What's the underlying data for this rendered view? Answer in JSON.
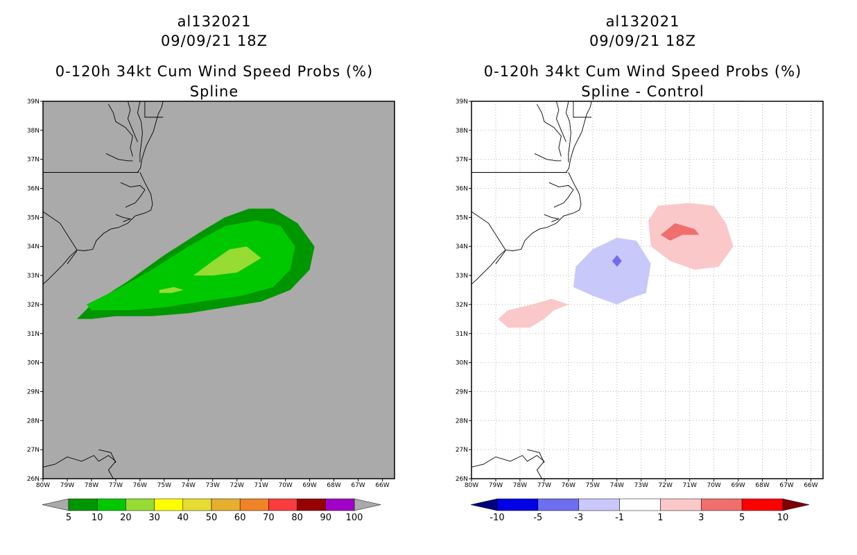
{
  "left": {
    "storm_id": "al132021",
    "datetime": "09/09/21 18Z",
    "title": "0-120h 34kt Cum Wind Speed Probs (%)",
    "subtitle": "Spline",
    "colorbar": {
      "labels": [
        "5",
        "10",
        "20",
        "30",
        "40",
        "50",
        "60",
        "70",
        "80",
        "90",
        "100"
      ],
      "colors": [
        "#009600",
        "#00c800",
        "#96dc32",
        "#ffff00",
        "#e6dc32",
        "#e6af2d",
        "#f08228",
        "#fa3c3c",
        "#960000",
        "#a000c8"
      ],
      "under_color": "#aaaaaa",
      "over_color": "#aaaaaa"
    },
    "background_color": "#aaaaaa"
  },
  "right": {
    "storm_id": "al132021",
    "datetime": "09/09/21 18Z",
    "title": "0-120h 34kt Cum Wind Speed Probs (%)",
    "subtitle": "Spline - Control",
    "colorbar": {
      "labels": [
        "-10",
        "-5",
        "-3",
        "-1",
        "1",
        "3",
        "5",
        "10"
      ],
      "colors": [
        "#0000e6",
        "#6e6ef0",
        "#c8c8fa",
        "#ffffff",
        "#fac8c8",
        "#f06e6e",
        "#ff0000"
      ],
      "under_color": "#00007d",
      "over_color": "#7d0000"
    },
    "background_color": "#ffffff"
  },
  "axes": {
    "lon_labels": [
      "80W",
      "79W",
      "78W",
      "77W",
      "76W",
      "75W",
      "74W",
      "73W",
      "72W",
      "71W",
      "70W",
      "69W",
      "68W",
      "67W",
      "66W"
    ],
    "lat_labels": [
      "26N",
      "27N",
      "28N",
      "29N",
      "30N",
      "31N",
      "32N",
      "33N",
      "34N",
      "35N",
      "36N",
      "37N",
      "38N",
      "39N"
    ],
    "lon_range": [
      -80,
      -65.5
    ],
    "lat_range": [
      26,
      39
    ]
  },
  "fields": {
    "spline_probs": [
      {
        "level": 5,
        "color": "#009600",
        "region": [
          [
            -78.6,
            31.5
          ],
          [
            -78.0,
            32.0
          ],
          [
            -76.5,
            32.8
          ],
          [
            -75.0,
            33.7
          ],
          [
            -73.5,
            34.5
          ],
          [
            -72.5,
            35.0
          ],
          [
            -71.5,
            35.3
          ],
          [
            -70.5,
            35.3
          ],
          [
            -69.5,
            34.8
          ],
          [
            -68.8,
            34.0
          ],
          [
            -69.0,
            33.2
          ],
          [
            -69.8,
            32.5
          ],
          [
            -71.0,
            32.1
          ],
          [
            -72.5,
            31.9
          ],
          [
            -74.0,
            31.7
          ],
          [
            -75.5,
            31.6
          ],
          [
            -77.0,
            31.6
          ],
          [
            -78.0,
            31.5
          ]
        ]
      },
      {
        "level": 10,
        "color": "#00c800",
        "region": [
          [
            -78.2,
            32.0
          ],
          [
            -77.0,
            32.5
          ],
          [
            -75.5,
            33.2
          ],
          [
            -74.0,
            34.0
          ],
          [
            -72.5,
            34.7
          ],
          [
            -71.2,
            34.9
          ],
          [
            -70.2,
            34.7
          ],
          [
            -69.6,
            34.0
          ],
          [
            -69.8,
            33.2
          ],
          [
            -70.5,
            32.6
          ],
          [
            -71.8,
            32.3
          ],
          [
            -73.5,
            32.1
          ],
          [
            -75.0,
            31.9
          ],
          [
            -76.5,
            31.8
          ],
          [
            -78.0,
            31.8
          ]
        ]
      },
      {
        "level": 20,
        "color": "#96dc32",
        "region": [
          [
            -73.8,
            33.0
          ],
          [
            -73.0,
            33.5
          ],
          [
            -72.3,
            33.9
          ],
          [
            -71.6,
            34.0
          ],
          [
            -71.0,
            33.6
          ],
          [
            -72.0,
            33.1
          ],
          [
            -73.0,
            33.0
          ]
        ]
      },
      {
        "level": 20,
        "color": "#96dc32",
        "region": [
          [
            -75.2,
            32.5
          ],
          [
            -74.6,
            32.6
          ],
          [
            -74.2,
            32.5
          ],
          [
            -74.7,
            32.4
          ],
          [
            -75.2,
            32.4
          ]
        ]
      }
    ],
    "spline_minus_control": [
      {
        "level": 1,
        "color": "#fac8c8",
        "region": [
          [
            -72.7,
            34.9
          ],
          [
            -72.3,
            35.4
          ],
          [
            -71.0,
            35.5
          ],
          [
            -70.0,
            35.4
          ],
          [
            -69.5,
            34.8
          ],
          [
            -69.2,
            34.0
          ],
          [
            -69.8,
            33.3
          ],
          [
            -70.8,
            33.2
          ],
          [
            -71.8,
            33.5
          ],
          [
            -72.6,
            34.0
          ]
        ]
      },
      {
        "level": 3,
        "color": "#f06e6e",
        "region": [
          [
            -72.2,
            34.4
          ],
          [
            -71.6,
            34.8
          ],
          [
            -70.8,
            34.6
          ],
          [
            -70.6,
            34.4
          ],
          [
            -71.3,
            34.4
          ],
          [
            -71.8,
            34.2
          ]
        ]
      },
      {
        "level": -1,
        "color": "#c8c8fa",
        "region": [
          [
            -75.8,
            32.6
          ],
          [
            -75.7,
            33.3
          ],
          [
            -75.0,
            33.9
          ],
          [
            -74.0,
            34.3
          ],
          [
            -73.2,
            34.2
          ],
          [
            -72.6,
            33.4
          ],
          [
            -72.8,
            32.4
          ],
          [
            -73.5,
            32.2
          ],
          [
            -74.0,
            32.0
          ],
          [
            -75.0,
            32.3
          ]
        ]
      },
      {
        "level": -3,
        "color": "#6e6ef0",
        "region": [
          [
            -74.2,
            33.5
          ],
          [
            -74.0,
            33.7
          ],
          [
            -73.8,
            33.5
          ],
          [
            -74.0,
            33.3
          ]
        ]
      },
      {
        "level": 1,
        "color": "#fac8c8",
        "region": [
          [
            -78.9,
            31.5
          ],
          [
            -78.5,
            31.8
          ],
          [
            -77.5,
            32.0
          ],
          [
            -76.7,
            32.2
          ],
          [
            -76.0,
            32.0
          ],
          [
            -76.6,
            31.8
          ],
          [
            -77.0,
            31.5
          ],
          [
            -77.6,
            31.2
          ],
          [
            -78.5,
            31.2
          ]
        ]
      }
    ]
  }
}
